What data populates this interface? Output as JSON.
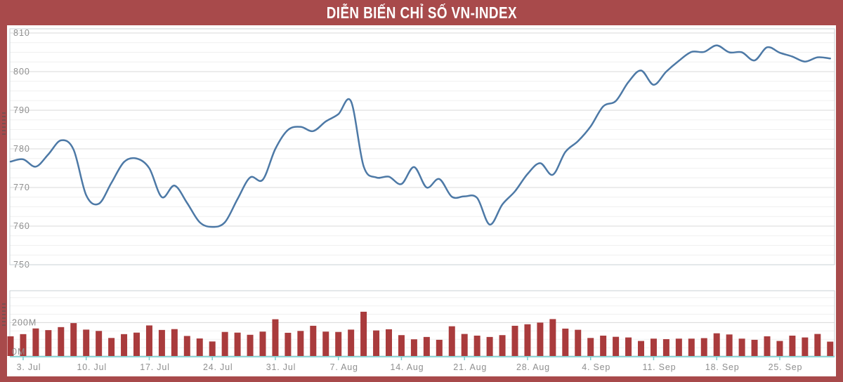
{
  "title": "DIỄN BIẾN CHỈ SỐ VN-INDEX",
  "colors": {
    "frame_red": "#a84a4b",
    "bar_red": "#a93b3c",
    "line_blue": "#4d79a6",
    "grid_major": "#d8d8d8",
    "grid_minor": "#f0f0f0",
    "plot_border": "#c9d0d4",
    "axis_teal": "#8fd6d6",
    "tick_teal": "#79cccc",
    "label_gray": "#8f8f8f",
    "title_text": "#ffffff"
  },
  "chart_data": {
    "type": "line",
    "title": "DIỄN BIẾN CHỈ SỐ VN-INDEX",
    "legend": "none",
    "grid": "on",
    "y_axis_index": {
      "tick_labels": [
        "810",
        "800",
        "790",
        "780",
        "770",
        "760",
        "750"
      ],
      "ticks": [
        810,
        800,
        790,
        780,
        770,
        760,
        750
      ],
      "min": 750,
      "max": 810,
      "minor_step": 2.5
    },
    "y_axis_volume": {
      "tick_labels": [
        "200M",
        "0M"
      ],
      "ticks_m": [
        200,
        0
      ],
      "minor_step_m": 50,
      "max_m": 390
    },
    "x_axis": {
      "tick_labels": [
        "3. Jul",
        "10. Jul",
        "17. Jul",
        "24. Jul",
        "31. Jul",
        "7. Aug",
        "14. Aug",
        "21. Aug",
        "28. Aug",
        "4. Sep",
        "11. Sep",
        "18. Sep",
        "25. Sep"
      ],
      "tick_point_indices": [
        1,
        6,
        11,
        16,
        21,
        26,
        31,
        36,
        41,
        46,
        51,
        56,
        61
      ]
    },
    "series": [
      {
        "name": "index_line",
        "type": "line",
        "values": [
          776.7,
          777.3,
          775.4,
          778.6,
          782.2,
          779.8,
          768.0,
          765.8,
          771.2,
          776.6,
          777.5,
          775.0,
          767.5,
          770.5,
          766.0,
          761.0,
          759.8,
          761.0,
          767.0,
          772.6,
          772.0,
          780.0,
          784.9,
          785.7,
          784.6,
          787.1,
          789.0,
          792.3,
          775.5,
          772.6,
          772.8,
          770.9,
          775.3,
          770.0,
          772.2,
          767.6,
          767.7,
          767.3,
          760.4,
          765.6,
          769.0,
          773.5,
          776.3,
          773.3,
          779.2,
          782.0,
          785.8,
          791.0,
          792.4,
          797.3,
          800.3,
          796.6,
          800.0,
          802.8,
          805.1,
          805.1,
          806.8,
          805.0,
          805.0,
          802.9,
          806.3,
          804.9,
          803.9,
          802.6,
          803.7,
          803.4
        ]
      },
      {
        "name": "volume_bars",
        "type": "bar",
        "unit": "M",
        "values": [
          118,
          131,
          165,
          155,
          173,
          197,
          158,
          150,
          108,
          131,
          140,
          183,
          156,
          161,
          120,
          105,
          87,
          144,
          140,
          127,
          146,
          220,
          139,
          150,
          181,
          146,
          144,
          158,
          265,
          153,
          160,
          125,
          100,
          114,
          97,
          178,
          132,
          122,
          114,
          125,
          181,
          190,
          200,
          221,
          164,
          157,
          108,
          122,
          115,
          111,
          90,
          104,
          101,
          104,
          104,
          107,
          136,
          129,
          104,
          97,
          118,
          90,
          122,
          111,
          132,
          86
        ]
      }
    ]
  }
}
